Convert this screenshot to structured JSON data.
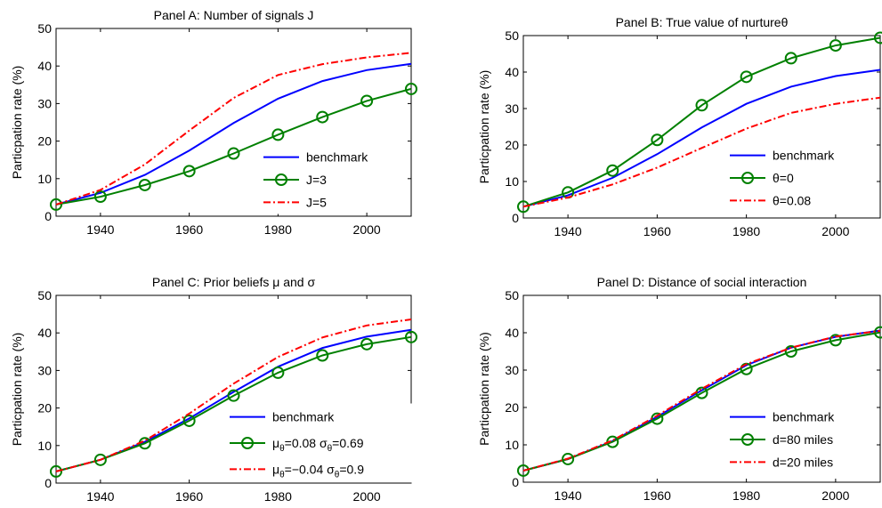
{
  "chart_data": [
    {
      "type": "line",
      "title": "Panel A: Number of signals J",
      "title_parts": [
        {
          "text": "Panel A: Number of signals J"
        }
      ],
      "xlabel": "",
      "ylabel": "Particpation rate (%)",
      "xlim": [
        1930,
        2010
      ],
      "ylim": [
        0,
        50
      ],
      "xticks": [
        1940,
        1960,
        1980,
        2000
      ],
      "yticks": [
        0,
        10,
        20,
        30,
        40,
        50
      ],
      "grid": false,
      "legend_position": "bottom-right",
      "series": [
        {
          "name": "benchmark",
          "name_parts": [
            {
              "text": "benchmark"
            }
          ],
          "color": "#0000ff",
          "style": "solid",
          "marker": "none",
          "x": [
            1930,
            1940,
            1950,
            1960,
            1970,
            1980,
            1990,
            2000,
            2010
          ],
          "y": [
            3.1,
            6.2,
            11,
            17.5,
            24.8,
            31.3,
            36,
            38.9,
            40.6
          ]
        },
        {
          "name": "J=3",
          "name_parts": [
            {
              "text": "J=3"
            }
          ],
          "color": "#008000",
          "style": "solid",
          "marker": "circle",
          "x": [
            1930,
            1940,
            1950,
            1960,
            1970,
            1980,
            1990,
            2000,
            2010
          ],
          "y": [
            3.1,
            5.2,
            8.3,
            12,
            16.7,
            21.7,
            26.4,
            30.7,
            33.9
          ]
        },
        {
          "name": "J=5",
          "name_parts": [
            {
              "text": "J=5"
            }
          ],
          "color": "#ff0000",
          "style": "dashdot",
          "marker": "none",
          "x": [
            1930,
            1940,
            1950,
            1960,
            1970,
            1980,
            1990,
            2000,
            2010
          ],
          "y": [
            3.1,
            7,
            13.8,
            22.8,
            31.5,
            37.6,
            40.5,
            42.3,
            43.5
          ]
        }
      ]
    },
    {
      "type": "line",
      "title": "Panel B: True value of nurtureθ",
      "title_parts": [
        {
          "text": "Panel B: True value of nurture"
        },
        {
          "text": "θ"
        }
      ],
      "xlabel": "",
      "ylabel": "Particpation rate (%)",
      "xlim": [
        1930,
        2010
      ],
      "ylim": [
        0,
        50
      ],
      "xticks": [
        1940,
        1960,
        1980,
        2000
      ],
      "yticks": [
        0,
        10,
        20,
        30,
        40,
        50
      ],
      "grid": false,
      "legend_position": "bottom-right",
      "series": [
        {
          "name": "benchmark",
          "name_parts": [
            {
              "text": "benchmark"
            }
          ],
          "color": "#0000ff",
          "style": "solid",
          "marker": "none",
          "x": [
            1930,
            1940,
            1950,
            1960,
            1970,
            1980,
            1990,
            2000,
            2010
          ],
          "y": [
            3.1,
            6.2,
            11,
            17.5,
            24.8,
            31.3,
            36,
            38.9,
            40.6
          ]
        },
        {
          "name": "θ=0",
          "name_parts": [
            {
              "text": "θ=0"
            }
          ],
          "color": "#008000",
          "style": "solid",
          "marker": "circle",
          "x": [
            1930,
            1940,
            1950,
            1960,
            1970,
            1980,
            1990,
            2000,
            2010
          ],
          "y": [
            3.1,
            7,
            13,
            21.4,
            30.9,
            38.7,
            43.8,
            47.3,
            49.4
          ]
        },
        {
          "name": "θ=0.08",
          "name_parts": [
            {
              "text": "θ=0.08"
            }
          ],
          "color": "#ff0000",
          "style": "dashdot",
          "marker": "none",
          "x": [
            1930,
            1940,
            1950,
            1960,
            1970,
            1980,
            1990,
            2000,
            2010
          ],
          "y": [
            3.1,
            5.6,
            9.2,
            13.8,
            19.2,
            24.5,
            28.8,
            31.3,
            33
          ]
        }
      ]
    },
    {
      "type": "line",
      "title": "Panel C: Prior beliefs μ and σ",
      "title_parts": [
        {
          "text": "Panel C: Prior beliefs "
        },
        {
          "text": "μ"
        },
        {
          "text": " and "
        },
        {
          "text": "σ"
        }
      ],
      "xlabel": "",
      "ylabel": "Particpation rate (%)",
      "xlim": [
        1930,
        2010
      ],
      "ylim": [
        0,
        50
      ],
      "xticks": [
        1940,
        1960,
        1980,
        2000
      ],
      "yticks": [
        0,
        10,
        20,
        30,
        40,
        50
      ],
      "grid": false,
      "legend_position": "bottom-right",
      "series": [
        {
          "name": "benchmark",
          "name_parts": [
            {
              "text": "benchmark"
            }
          ],
          "color": "#0000ff",
          "style": "solid",
          "marker": "none",
          "x": [
            1930,
            1940,
            1950,
            1960,
            1970,
            1980,
            1990,
            2000,
            2010
          ],
          "y": [
            3.1,
            6.2,
            11,
            17.2,
            24.3,
            31,
            36,
            39,
            40.8
          ]
        },
        {
          "name": "μθ=0.08 σθ=0.69",
          "name_parts": [
            {
              "text": "μ"
            },
            {
              "text": "θ",
              "sub": true
            },
            {
              "text": "=0.08 "
            },
            {
              "text": "σ"
            },
            {
              "text": "θ",
              "sub": true
            },
            {
              "text": "=0.69"
            }
          ],
          "color": "#008000",
          "style": "solid",
          "marker": "circle",
          "x": [
            1930,
            1940,
            1950,
            1960,
            1970,
            1980,
            1990,
            2000,
            2010
          ],
          "y": [
            3.1,
            6.2,
            10.6,
            16.6,
            23.3,
            29.4,
            34,
            37,
            38.9
          ]
        },
        {
          "name": "μθ=−0.04 σθ=0.9",
          "name_parts": [
            {
              "text": "μ"
            },
            {
              "text": "θ",
              "sub": true
            },
            {
              "text": "=−0.04 "
            },
            {
              "text": "σ"
            },
            {
              "text": "θ",
              "sub": true
            },
            {
              "text": "=0.9"
            }
          ],
          "color": "#ff0000",
          "style": "dashdot",
          "marker": "none",
          "x": [
            1930,
            1940,
            1950,
            1960,
            1970,
            1980,
            1990,
            2000,
            2010
          ],
          "y": [
            3.1,
            6.2,
            11.3,
            18.5,
            26.5,
            33.6,
            38.8,
            42,
            43.6
          ]
        }
      ]
    },
    {
      "type": "line",
      "title": "Panel D: Distance of social interaction",
      "title_parts": [
        {
          "text": "Panel D: Distance of social interaction"
        }
      ],
      "xlabel": "",
      "ylabel": "Particpation rate (%)",
      "xlim": [
        1930,
        2010
      ],
      "ylim": [
        0,
        50
      ],
      "xticks": [
        1940,
        1960,
        1980,
        2000
      ],
      "yticks": [
        0,
        10,
        20,
        30,
        40,
        50
      ],
      "grid": false,
      "legend_position": "bottom-right",
      "series": [
        {
          "name": "benchmark",
          "name_parts": [
            {
              "text": "benchmark"
            }
          ],
          "color": "#0000ff",
          "style": "solid",
          "marker": "none",
          "x": [
            1930,
            1940,
            1950,
            1960,
            1970,
            1980,
            1990,
            2000,
            2010
          ],
          "y": [
            3.1,
            6.2,
            11,
            17.5,
            24.6,
            31.3,
            36,
            38.9,
            40.6
          ]
        },
        {
          "name": "d=80 miles",
          "name_parts": [
            {
              "text": "d=80 miles"
            }
          ],
          "color": "#008000",
          "style": "solid",
          "marker": "circle",
          "x": [
            1930,
            1940,
            1950,
            1960,
            1970,
            1980,
            1990,
            2000,
            2010
          ],
          "y": [
            3.1,
            6.2,
            10.8,
            17,
            23.9,
            30.3,
            35,
            38,
            40.1
          ]
        },
        {
          "name": "d=20 miles",
          "name_parts": [
            {
              "text": "d=20 miles"
            }
          ],
          "color": "#ff0000",
          "style": "dashdot",
          "marker": "none",
          "x": [
            1930,
            1940,
            1950,
            1960,
            1970,
            1980,
            1990,
            2000,
            2010
          ],
          "y": [
            3.1,
            6.3,
            11.2,
            17.8,
            25,
            31.6,
            36,
            39,
            40.5
          ]
        }
      ]
    }
  ]
}
